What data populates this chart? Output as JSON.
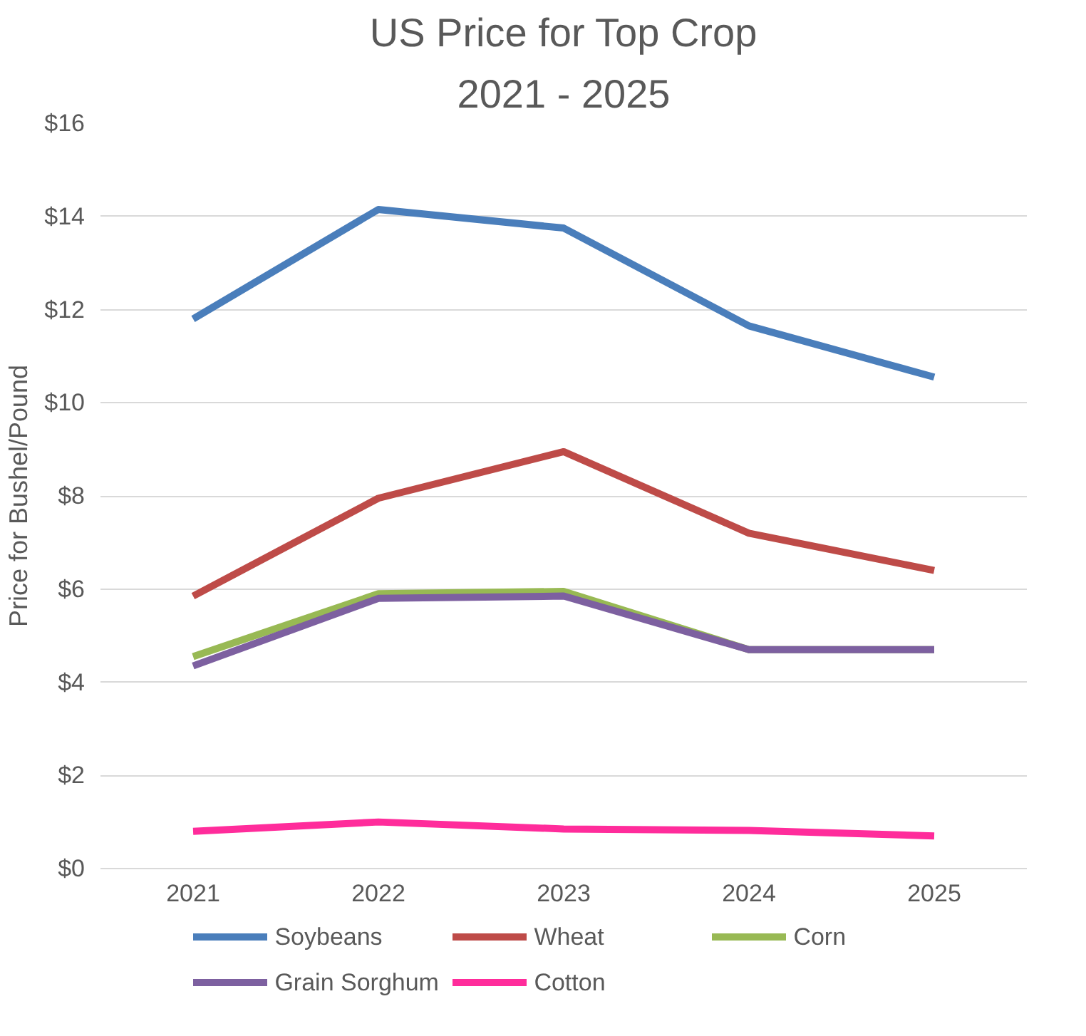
{
  "chart_data": {
    "type": "line",
    "title": "US Price for Top Crop",
    "subtitle": "2021 - 2025",
    "ylabel": "Price for Bushel/Pound",
    "categories": [
      "2021",
      "2022",
      "2023",
      "2024",
      "2025"
    ],
    "series": [
      {
        "name": "Soybeans",
        "color": "#4a7ebb",
        "values": [
          11.8,
          14.15,
          13.75,
          11.65,
          10.55
        ]
      },
      {
        "name": "Wheat",
        "color": "#be4b48",
        "values": [
          5.85,
          7.95,
          8.95,
          7.2,
          6.4
        ]
      },
      {
        "name": "Corn",
        "color": "#98b954",
        "values": [
          4.55,
          5.9,
          5.95,
          4.7,
          4.7
        ]
      },
      {
        "name": "Grain Sorghum",
        "color": "#7d60a0",
        "values": [
          4.35,
          5.8,
          5.85,
          4.7,
          4.7
        ]
      },
      {
        "name": "Cotton",
        "color": "#ff2c9b",
        "values": [
          0.8,
          1.0,
          0.85,
          0.82,
          0.7
        ]
      }
    ],
    "ylim": [
      0,
      16
    ],
    "yticks": [
      {
        "value": 0,
        "label": "$0"
      },
      {
        "value": 2,
        "label": "$2"
      },
      {
        "value": 4,
        "label": "$4"
      },
      {
        "value": 6,
        "label": "$6"
      },
      {
        "value": 8,
        "label": "$8"
      },
      {
        "value": 10,
        "label": "$10"
      },
      {
        "value": 12,
        "label": "$12"
      },
      {
        "value": 14,
        "label": "$14"
      },
      {
        "value": 16,
        "label": "$16"
      }
    ],
    "grid": "y",
    "legend": "bottom",
    "marker": "none",
    "line_style": "solid"
  }
}
